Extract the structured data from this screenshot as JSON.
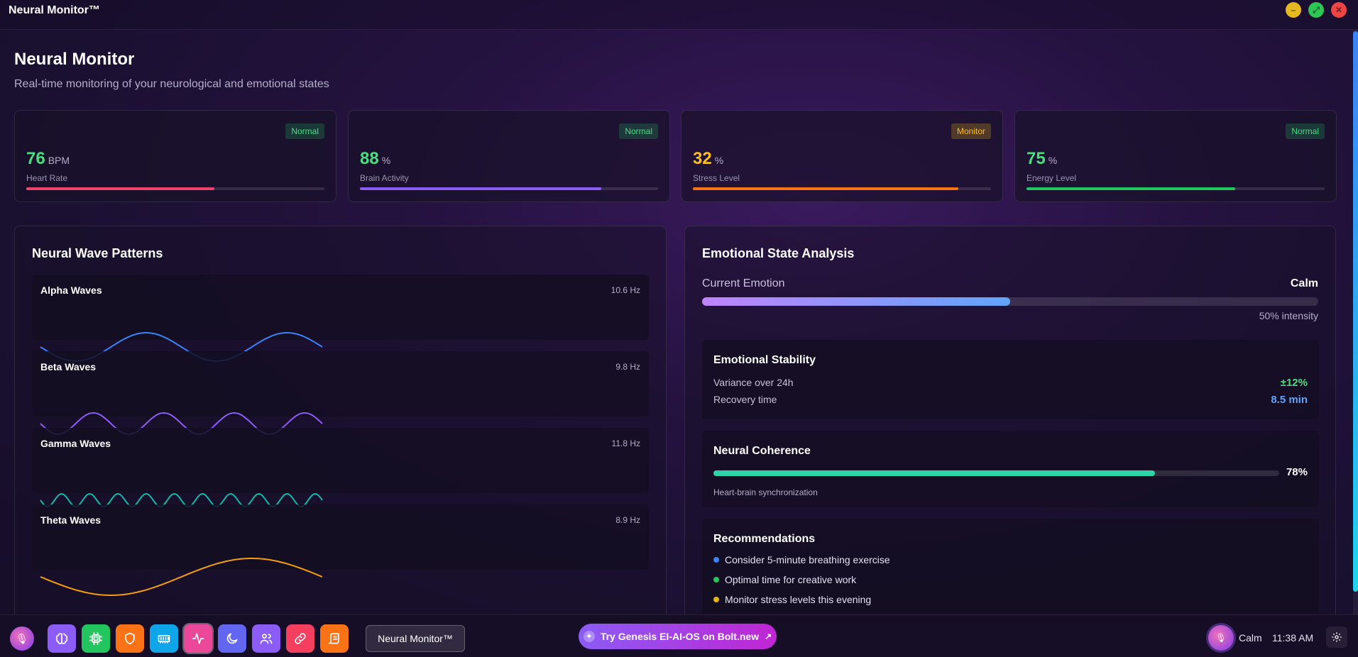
{
  "window": {
    "title": "Neural Monitor™"
  },
  "header": {
    "title": "Neural Monitor",
    "subtitle": "Real-time monitoring of your neurological and emotional states"
  },
  "metrics": [
    {
      "value": "76",
      "unit": "BPM",
      "label": "Heart Rate",
      "status": "Normal",
      "progress": 0.63,
      "color": "#f0436b",
      "value_color": "#4ade80"
    },
    {
      "value": "88",
      "unit": "%",
      "label": "Brain Activity",
      "status": "Normal",
      "progress": 0.81,
      "color": "#8b5cf6",
      "value_color": "#4ade80"
    },
    {
      "value": "32",
      "unit": "%",
      "label": "Stress Level",
      "status": "Monitor",
      "progress": 0.89,
      "color": "#f97316",
      "value_color": "#fbbf24"
    },
    {
      "value": "75",
      "unit": "%",
      "label": "Energy Level",
      "status": "Normal",
      "progress": 0.7,
      "color": "#22c55e",
      "value_color": "#4ade80"
    }
  ],
  "waves": {
    "title": "Neural Wave Patterns",
    "items": [
      {
        "name": "Alpha Waves",
        "freq": "10.6 Hz",
        "color": "#3b82f6",
        "cycles": 2,
        "amp": 20
      },
      {
        "name": "Beta Waves",
        "freq": "9.8 Hz",
        "color": "#8b5cf6",
        "cycles": 4,
        "amp": 15
      },
      {
        "name": "Gamma Waves",
        "freq": "11.8 Hz",
        "color": "#14b8a6",
        "cycles": 10,
        "amp": 9
      },
      {
        "name": "Theta Waves",
        "freq": "8.9 Hz",
        "color": "#f59e0b",
        "cycles": 1,
        "amp": 26
      }
    ]
  },
  "emotion": {
    "title": "Emotional State Analysis",
    "current_label": "Current Emotion",
    "current_value": "Calm",
    "intensity": 0.5,
    "intensity_text": "50% intensity",
    "stability": {
      "title": "Emotional Stability",
      "variance_label": "Variance over 24h",
      "variance_value": "±12%",
      "recovery_label": "Recovery time",
      "recovery_value": "8.5 min"
    },
    "coherence": {
      "title": "Neural Coherence",
      "value": 0.78,
      "value_text": "78%",
      "caption": "Heart-brain synchronization"
    },
    "recommendations": {
      "title": "Recommendations",
      "items": [
        {
          "text": "Consider 5-minute breathing exercise",
          "color": "#3b82f6"
        },
        {
          "text": "Optimal time for creative work",
          "color": "#22c55e"
        },
        {
          "text": "Monitor stress levels this evening",
          "color": "#eab308"
        }
      ]
    }
  },
  "taskbar": {
    "dock": [
      {
        "icon": "brain-icon",
        "bg": "#8b5cf6"
      },
      {
        "icon": "cpu-icon",
        "bg": "#22c55e"
      },
      {
        "icon": "shield-icon",
        "bg": "#f97316"
      },
      {
        "icon": "memory-icon",
        "bg": "#0ea5e9"
      },
      {
        "icon": "activity-icon",
        "bg": "#ec4899",
        "active": true
      },
      {
        "icon": "moon-icon",
        "bg": "#6366f1"
      },
      {
        "icon": "users-icon",
        "bg": "#8b5cf6"
      },
      {
        "icon": "link-icon",
        "bg": "#f43f5e"
      },
      {
        "icon": "scroll-icon",
        "bg": "#f97316"
      }
    ],
    "active_window": "Neural Monitor™",
    "promo": "Try Genesis EI-AI-OS on Bolt.new",
    "mood": "Calm",
    "time": "11:38 AM"
  }
}
